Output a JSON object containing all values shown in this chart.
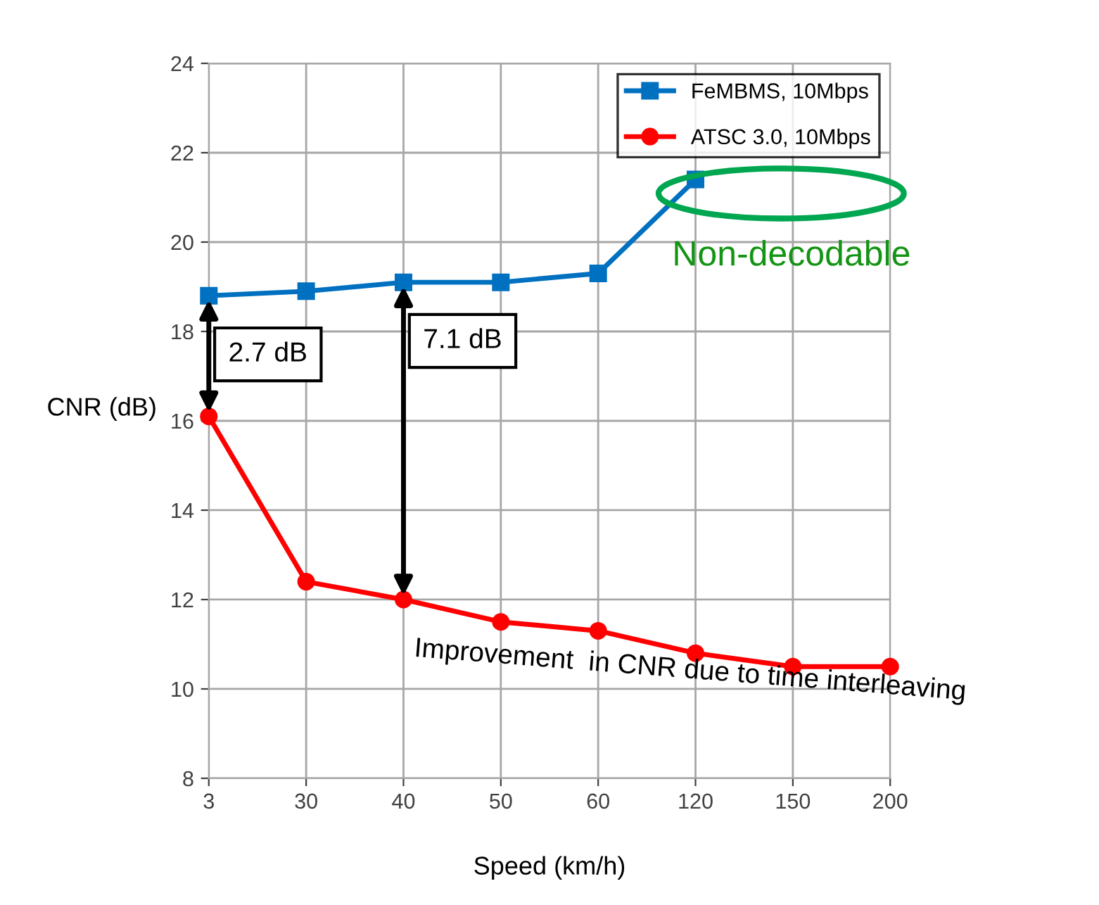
{
  "chart_data": {
    "type": "line",
    "xlabel": "Speed (km/h)",
    "ylabel": "CNR (dB)",
    "categories": [
      "3",
      "30",
      "40",
      "50",
      "60",
      "120",
      "150",
      "200"
    ],
    "series": [
      {
        "name": "FeMBMS, 10Mbps",
        "color": "#0070c0",
        "marker": "square",
        "values": [
          18.8,
          18.9,
          19.1,
          19.1,
          19.3,
          21.4,
          null,
          null
        ]
      },
      {
        "name": "ATSC 3.0, 10Mbps",
        "color": "#ff0000",
        "marker": "circle",
        "values": [
          16.1,
          12.4,
          12.0,
          11.5,
          11.3,
          10.8,
          10.5,
          10.5
        ]
      }
    ],
    "ylim": [
      8,
      24
    ],
    "yticks": [
      8,
      10,
      12,
      14,
      16,
      18,
      20,
      22,
      24
    ],
    "grid": true,
    "legend": "top right",
    "annotations": [
      {
        "text": "2.7 dB",
        "x": "3",
        "y": 18.8
      },
      {
        "text": "7.1 dB",
        "x": "40",
        "y": 19.1
      },
      "Improvement  in CNR due to time interleaving",
      "Non-decodable"
    ]
  }
}
